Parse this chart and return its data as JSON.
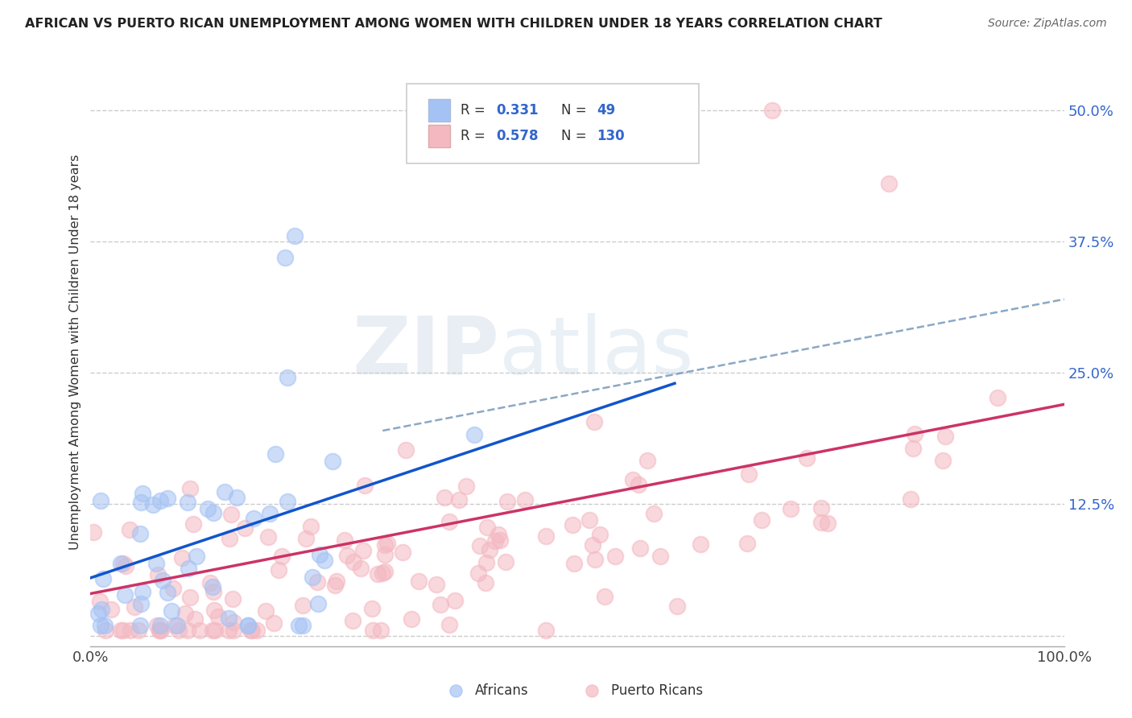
{
  "title": "AFRICAN VS PUERTO RICAN UNEMPLOYMENT AMONG WOMEN WITH CHILDREN UNDER 18 YEARS CORRELATION CHART",
  "source": "Source: ZipAtlas.com",
  "ylabel": "Unemployment Among Women with Children Under 18 years",
  "xlim": [
    0,
    1.0
  ],
  "ylim": [
    -0.01,
    0.55
  ],
  "yticks": [
    0.0,
    0.125,
    0.25,
    0.375,
    0.5
  ],
  "ytick_labels": [
    "",
    "12.5%",
    "25.0%",
    "37.5%",
    "50.0%"
  ],
  "color_african": "#a4c2f4",
  "color_pr": "#f4b8c1",
  "color_african_line": "#1155cc",
  "color_pr_line": "#cc3366",
  "color_dashed": "#7799bb",
  "background_color": "#ffffff",
  "watermark_zip": "ZIP",
  "watermark_atlas": "atlas",
  "af_line_x0": 0.0,
  "af_line_y0": 0.055,
  "af_line_x1": 0.6,
  "af_line_y1": 0.24,
  "pr_line_x0": 0.0,
  "pr_line_y0": 0.04,
  "pr_line_x1": 1.0,
  "pr_line_y1": 0.22,
  "dash_line_x0": 0.3,
  "dash_line_y0": 0.195,
  "dash_line_x1": 1.0,
  "dash_line_y1": 0.32
}
